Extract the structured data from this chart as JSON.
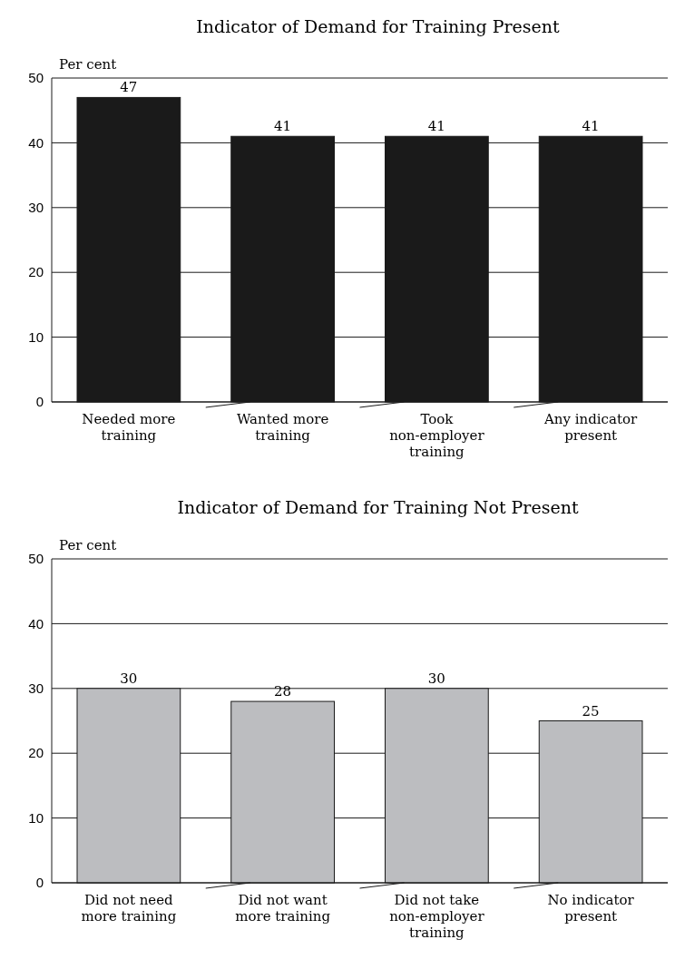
{
  "chart_data": [
    {
      "type": "bar",
      "title": "Indicator of Demand for Training Present",
      "ylabel": "Per cent",
      "categories": [
        "Needed more training",
        "Wanted more training",
        "Took non-employer training",
        "Any indicator present"
      ],
      "values": [
        47,
        41,
        41,
        41
      ],
      "color": "#1a1a1a",
      "ylim": [
        0,
        50
      ],
      "yticks": [
        0,
        10,
        20,
        30,
        40,
        50
      ],
      "grid": "y",
      "data_labels": true
    },
    {
      "type": "bar",
      "title": "Indicator of Demand for Training Not Present",
      "ylabel": "Per cent",
      "categories": [
        "Did not need more training",
        "Did not want more training",
        "Did not take non-employer training",
        "No indicator present"
      ],
      "values": [
        30,
        28,
        30,
        25
      ],
      "color": "#bcbdc0",
      "ylim": [
        0,
        50
      ],
      "yticks": [
        0,
        10,
        20,
        30,
        40,
        50
      ],
      "grid": "y",
      "data_labels": true
    }
  ]
}
